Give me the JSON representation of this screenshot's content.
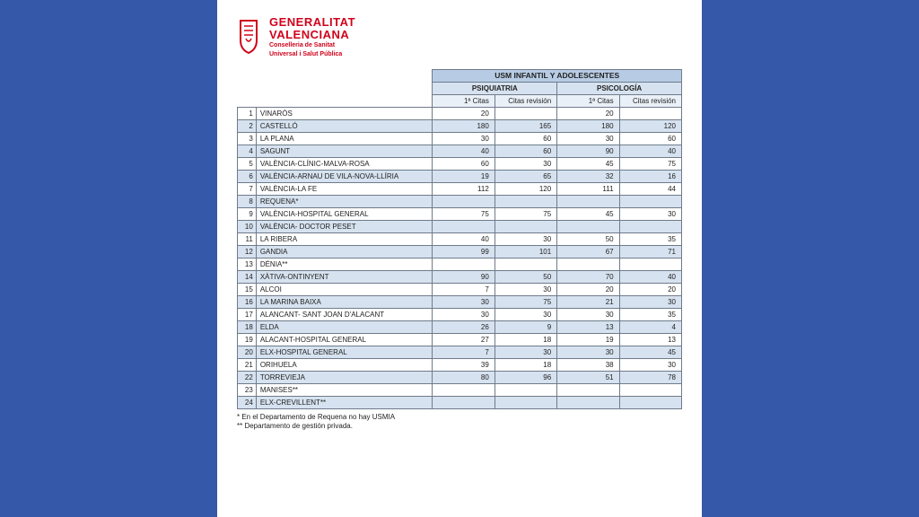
{
  "logo": {
    "line1a": "GENERALITAT",
    "line1b": "VALENCIANA",
    "line2a": "Conselleria de Sanitat",
    "line2b": "Universal i Salut Pública",
    "color": "#d0021b"
  },
  "table": {
    "header_main": "USM INFANTIL Y ADOLESCENTES",
    "header_groups": [
      "PSIQUIATRIA",
      "PSICOLOGÍA"
    ],
    "header_cols": [
      "1ª Citas",
      "Citas revisión",
      "1ª Citas",
      "Citas revisión"
    ],
    "colors": {
      "border": "#6f7b8a",
      "hdr_main_bg": "#b7cce4",
      "hdr_sub_bg": "#d6e2ef",
      "hdr_col_bg": "#eaf0f7",
      "band_bg": "#d6e2ef",
      "row_bg": "#ffffff"
    },
    "rows": [
      {
        "n": "1",
        "name": "VINARÒS",
        "v": [
          "20",
          "",
          "20",
          ""
        ]
      },
      {
        "n": "2",
        "name": "CASTELLÓ",
        "v": [
          "180",
          "165",
          "180",
          "120"
        ]
      },
      {
        "n": "3",
        "name": "LA PLANA",
        "v": [
          "30",
          "60",
          "30",
          "60"
        ]
      },
      {
        "n": "4",
        "name": "SAGUNT",
        "v": [
          "40",
          "60",
          "90",
          "40"
        ]
      },
      {
        "n": "5",
        "name": "VALÈNCIA-CLÍNIC-MALVA-ROSA",
        "v": [
          "60",
          "30",
          "45",
          "75"
        ]
      },
      {
        "n": "6",
        "name": "VALÈNCIA-ARNAU DE VILA-NOVA-LLÍRIA",
        "v": [
          "19",
          "65",
          "32",
          "16"
        ]
      },
      {
        "n": "7",
        "name": "VALÈNCIA-LA FE",
        "v": [
          "112",
          "120",
          "111",
          "44"
        ]
      },
      {
        "n": "8",
        "name": "REQUENA*",
        "v": [
          "",
          "",
          "",
          ""
        ]
      },
      {
        "n": "9",
        "name": "VALÈNCIA-HOSPITAL GENERAL",
        "v": [
          "75",
          "75",
          "45",
          "30"
        ]
      },
      {
        "n": "10",
        "name": "VALÈNCIA- DOCTOR PESET",
        "v": [
          "",
          "",
          "",
          ""
        ]
      },
      {
        "n": "11",
        "name": "LA RIBERA",
        "v": [
          "40",
          "30",
          "50",
          "35"
        ]
      },
      {
        "n": "12",
        "name": "GANDIA",
        "v": [
          "99",
          "101",
          "67",
          "71"
        ]
      },
      {
        "n": "13",
        "name": "DÉNIA**",
        "v": [
          "",
          "",
          "",
          ""
        ]
      },
      {
        "n": "14",
        "name": "XÀTIVA-ONTINYENT",
        "v": [
          "90",
          "50",
          "70",
          "40"
        ]
      },
      {
        "n": "15",
        "name": "ALCOI",
        "v": [
          "7",
          "30",
          "20",
          "20"
        ]
      },
      {
        "n": "16",
        "name": "LA MARINA BAIXA",
        "v": [
          "30",
          "75",
          "21",
          "30"
        ]
      },
      {
        "n": "17",
        "name": "ALANCANT- SANT JOAN D'ALACANT",
        "v": [
          "30",
          "30",
          "30",
          "35"
        ]
      },
      {
        "n": "18",
        "name": "ELDA",
        "v": [
          "26",
          "9",
          "13",
          "4"
        ]
      },
      {
        "n": "19",
        "name": "ALACANT-HOSPITAL GENERAL",
        "v": [
          "27",
          "18",
          "19",
          "13"
        ]
      },
      {
        "n": "20",
        "name": "ELX-HOSPITAL GENERAL",
        "v": [
          "7",
          "30",
          "30",
          "45"
        ]
      },
      {
        "n": "21",
        "name": "ORIHUELA",
        "v": [
          "39",
          "18",
          "38",
          "30"
        ]
      },
      {
        "n": "22",
        "name": "TORREVIEJA",
        "v": [
          "80",
          "96",
          "51",
          "78"
        ]
      },
      {
        "n": "23",
        "name": "MANISES**",
        "v": [
          "",
          "",
          "",
          ""
        ]
      },
      {
        "n": "24",
        "name": "ELX-CREVILLENT**",
        "v": [
          "",
          "",
          "",
          ""
        ]
      }
    ]
  },
  "notes": [
    "* En el Departamento de Requena no hay USMIA",
    "** Departamento de gestión privada."
  ],
  "page_bg": "#3558a8"
}
